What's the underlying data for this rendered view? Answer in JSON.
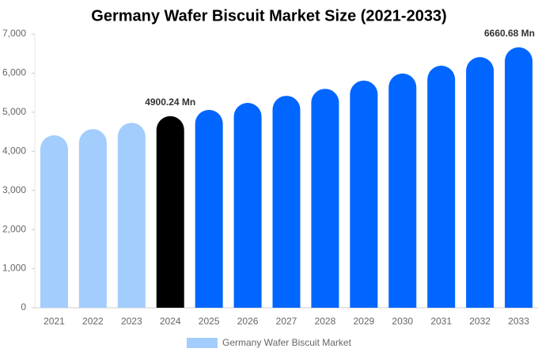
{
  "chart_data": {
    "type": "bar",
    "title": "Germany Wafer Biscuit Market Size (2021-2033)",
    "categories": [
      "2021",
      "2022",
      "2023",
      "2024",
      "2025",
      "2026",
      "2027",
      "2028",
      "2029",
      "2030",
      "2031",
      "2032",
      "2033"
    ],
    "series": [
      {
        "name": "Germany Wafer Biscuit Market",
        "color": "#a3cdfc",
        "values": [
          4410,
          4570,
          4730,
          4900.24,
          5060,
          5240,
          5420,
          5600,
          5810,
          5990,
          6190,
          6410,
          6660.68
        ],
        "value_labels": [
          null,
          null,
          null,
          "4900.24 Mn",
          null,
          null,
          null,
          null,
          null,
          null,
          null,
          null,
          "6660.68 Mn"
        ],
        "colors": [
          "#a3cdfc",
          "#a3cdfc",
          "#a3cdfc",
          "#000000",
          "#0066ff",
          "#0066ff",
          "#0066ff",
          "#0066ff",
          "#0066ff",
          "#0066ff",
          "#0066ff",
          "#0066ff",
          "#0066ff"
        ]
      }
    ],
    "ylim": [
      0,
      7000
    ],
    "yticks": [
      0,
      {
        "value": 1000,
        "label": "1,000"
      },
      {
        "value": 2000,
        "label": "2,000"
      },
      {
        "value": 3000,
        "label": "3,000"
      },
      {
        "value": 4000,
        "label": "4,000"
      },
      {
        "value": 5000,
        "label": "5,000"
      },
      {
        "value": 6000,
        "label": "6,000"
      },
      {
        "value": 7000,
        "label": "7,000"
      }
    ],
    "legend": "bottom"
  }
}
